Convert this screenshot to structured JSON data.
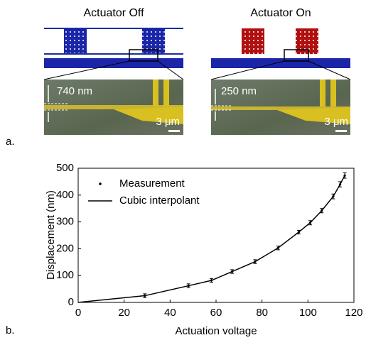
{
  "panel_a": {
    "label": "a.",
    "left": {
      "title": "Actuator Off",
      "gap_label": "740 nm",
      "scale_label": "3 μm"
    },
    "right": {
      "title": "Actuator On",
      "gap_label": "250 nm",
      "scale_label": "3 μm"
    }
  },
  "chart_data": {
    "type": "scatter",
    "panel_label": "b.",
    "x_label": "Actuation voltage",
    "y_label": "Displacement (nm)",
    "xlim": [
      0,
      120
    ],
    "ylim": [
      0,
      500
    ],
    "xticks": [
      0,
      20,
      40,
      60,
      80,
      100,
      120
    ],
    "yticks": [
      0,
      100,
      200,
      300,
      400,
      500
    ],
    "legend": "upper left",
    "series": [
      {
        "name": "Measurement",
        "type": "scatter",
        "color": "#000000",
        "x": [
          29,
          48,
          58,
          67,
          77,
          87,
          96,
          101,
          106,
          111,
          114,
          116
        ],
        "values": [
          25,
          62,
          82,
          115,
          152,
          203,
          262,
          297,
          342,
          395,
          440,
          473
        ],
        "errors": [
          7,
          7,
          7,
          7,
          7,
          7,
          7,
          8,
          8,
          9,
          10,
          10
        ]
      },
      {
        "name": "Cubic interpolant",
        "type": "line",
        "color": "#000000",
        "x": [
          0,
          29,
          48,
          58,
          67,
          77,
          87,
          96,
          101,
          106,
          111,
          114,
          116
        ],
        "values": [
          0,
          25,
          62,
          82,
          115,
          152,
          203,
          262,
          297,
          342,
          395,
          440,
          473
        ]
      }
    ]
  }
}
